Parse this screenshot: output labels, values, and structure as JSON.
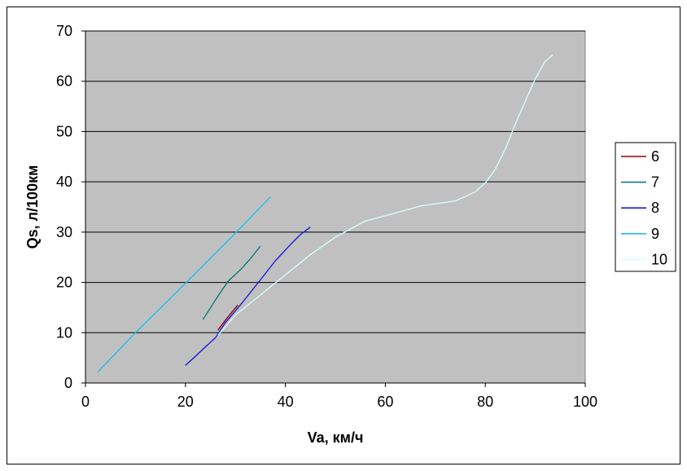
{
  "chart_data": {
    "type": "line",
    "title": "",
    "xlabel": "Va, км/ч",
    "ylabel": "Qs, л/100км",
    "xlim": [
      0,
      100
    ],
    "ylim": [
      0,
      70
    ],
    "xticks": [
      0,
      20,
      40,
      60,
      80,
      100
    ],
    "yticks": [
      0,
      10,
      20,
      30,
      40,
      50,
      60,
      70
    ],
    "grid": "horizontal",
    "plot_background": "#c0c0c0",
    "legend_position": "right",
    "series": [
      {
        "name": "6",
        "color": "#9a0000",
        "x": [
          26.5,
          28,
          29.5,
          30.5
        ],
        "y": [
          10.5,
          12.5,
          14.3,
          15.5
        ]
      },
      {
        "name": "7",
        "color": "#0f7c7c",
        "x": [
          23.5,
          26,
          28.5,
          31,
          33,
          35
        ],
        "y": [
          12.6,
          16.5,
          20.2,
          22.5,
          24.7,
          27.2
        ]
      },
      {
        "name": "8",
        "color": "#1c1cd6",
        "x": [
          20,
          22,
          24,
          26,
          28,
          31,
          35,
          38,
          41,
          43,
          45
        ],
        "y": [
          3.5,
          5.3,
          7.2,
          9,
          12,
          15.5,
          20.5,
          24.3,
          27.5,
          29.5,
          31
        ]
      },
      {
        "name": "9",
        "color": "#1ec0e8",
        "x": [
          2.5,
          10,
          20,
          30,
          37
        ],
        "y": [
          2.2,
          10,
          19.8,
          29.8,
          37
        ]
      },
      {
        "name": "10",
        "color": "#d8fbfb",
        "x": [
          26.5,
          30,
          35,
          40,
          45,
          50,
          56,
          62,
          67,
          74,
          78,
          80,
          82,
          84,
          86,
          88,
          90,
          92,
          93.5
        ],
        "y": [
          9.5,
          13.5,
          17.5,
          21.5,
          25.5,
          29,
          32.2,
          33.8,
          35.2,
          36.2,
          38,
          39.8,
          42.5,
          46.5,
          51.5,
          56,
          60.5,
          64,
          65.2
        ]
      }
    ]
  }
}
